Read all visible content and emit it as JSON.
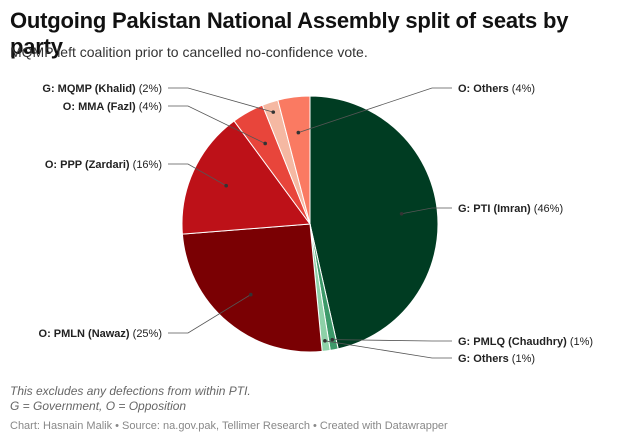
{
  "title": "Outgoing Pakistan National Assembly split of seats by party",
  "subtitle": "MQMP left coalition prior to cancelled no-confidence vote.",
  "notes": [
    "This excludes any defections from within PTI.",
    "G = Government, O = Opposition"
  ],
  "footer": "Chart: Hasnain Malik • Source: na.gov.pak, Tellimer Research • Created with Datawrapper",
  "chart_data": {
    "type": "pie",
    "slices": [
      {
        "name": "G: PTI (Imran)",
        "value": 46,
        "value_label": "(46%)",
        "color": "#003c22"
      },
      {
        "name": "G: PMLQ (Chaudhry)",
        "value": 1,
        "value_label": "(1%)",
        "color": "#3d9a6a"
      },
      {
        "name": "G: Others",
        "value": 1,
        "value_label": "(1%)",
        "color": "#8ed1a8"
      },
      {
        "name": "O: PMLN (Nawaz)",
        "value": 25,
        "value_label": "(25%)",
        "color": "#7a0003"
      },
      {
        "name": "O: PPP (Zardari)",
        "value": 16,
        "value_label": "(16%)",
        "color": "#bd1118"
      },
      {
        "name": "O: MMA (Fazl)",
        "value": 4,
        "value_label": "(4%)",
        "color": "#e8453b"
      },
      {
        "name": "G: MQMP (Khalid)",
        "value": 2,
        "value_label": "(2%)",
        "color": "#f5b8a2"
      },
      {
        "name": "O: Others",
        "value": 4,
        "value_label": "(4%)",
        "color": "#fa7a62"
      }
    ]
  }
}
